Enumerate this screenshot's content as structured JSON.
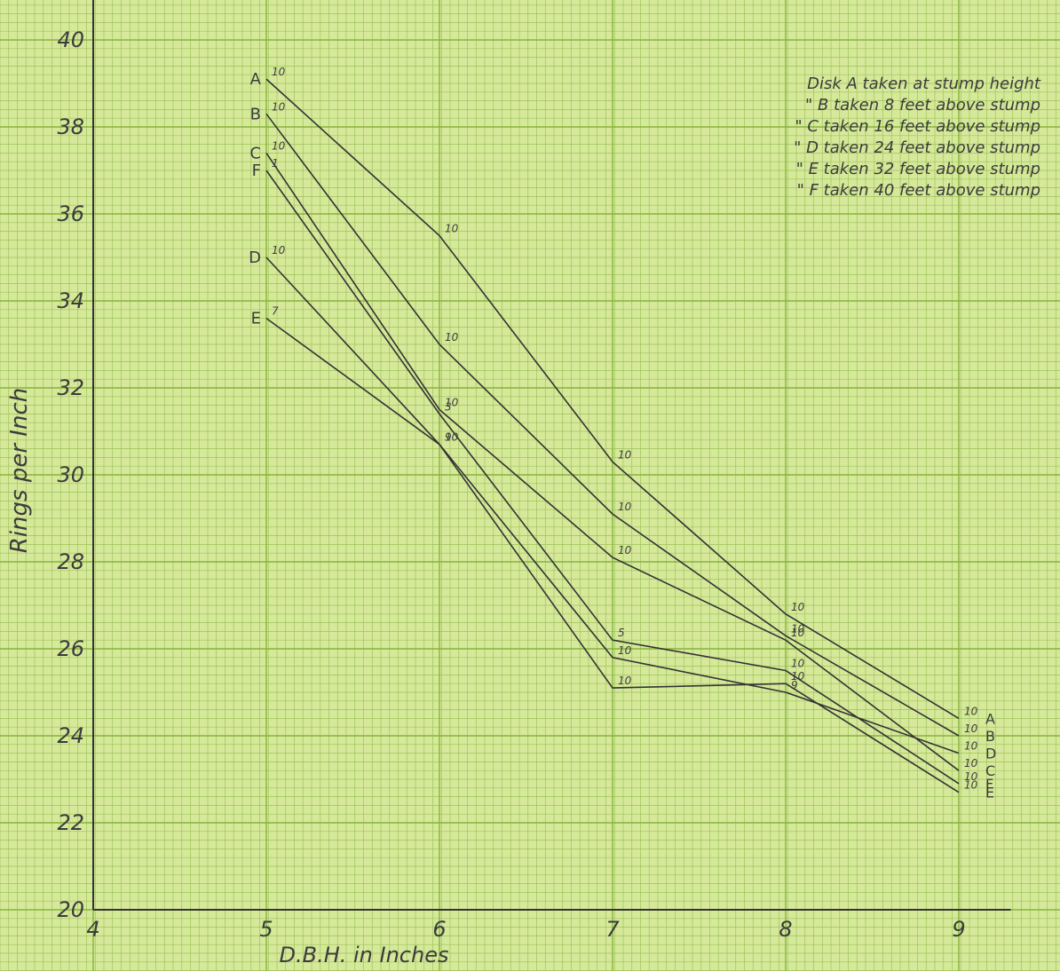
{
  "chart_data": {
    "type": "line",
    "xlabel": "D.B.H. in Inches",
    "ylabel": "Rings per Inch",
    "x": [
      5,
      6,
      7,
      8,
      9
    ],
    "series": [
      {
        "name": "A",
        "color": "#333333",
        "values": [
          39.1,
          35.5,
          30.3,
          26.8,
          24.4
        ],
        "point_notes": [
          "10",
          "10",
          "10",
          "10",
          "10"
        ]
      },
      {
        "name": "B",
        "color": "#333333",
        "values": [
          38.3,
          33.0,
          29.1,
          26.3,
          24.0
        ],
        "point_notes": [
          "10",
          "10",
          "10",
          "10",
          "10"
        ]
      },
      {
        "name": "C",
        "color": "#333333",
        "values": [
          37.4,
          31.5,
          28.1,
          26.2,
          23.2
        ],
        "point_notes": [
          "10",
          "10",
          "10",
          "10",
          "10"
        ]
      },
      {
        "name": "D",
        "color": "#333333",
        "values": [
          35.0,
          30.7,
          25.8,
          25.0,
          23.6
        ],
        "point_notes": [
          "10",
          "10",
          "10",
          "9",
          "10"
        ]
      },
      {
        "name": "E",
        "color": "#333333",
        "values": [
          33.6,
          30.7,
          25.1,
          25.2,
          22.7
        ],
        "point_notes": [
          "7",
          "9",
          "10",
          "10",
          "10"
        ]
      },
      {
        "name": "F",
        "color": "#333333",
        "values": [
          37.0,
          31.4,
          26.2,
          25.5,
          22.9
        ],
        "point_notes": [
          "1",
          "3",
          "5",
          "10",
          "10"
        ]
      }
    ],
    "legend_notes": [
      "Disk A taken at stump height",
      "\" B taken 8 feet above stump",
      "\" C taken 16 feet above stump",
      "\" D taken 24 feet above stump",
      "\" E taken 32 feet above stump",
      "\" F taken 40 feet above stump"
    ],
    "xlim": [
      4,
      9.3
    ],
    "ylim": [
      20,
      40.5
    ],
    "xticks": [
      4,
      5,
      6,
      7,
      8,
      9
    ],
    "yticks": [
      20,
      22,
      24,
      26,
      28,
      30,
      32,
      34,
      36,
      38,
      40
    ],
    "grid": true
  }
}
